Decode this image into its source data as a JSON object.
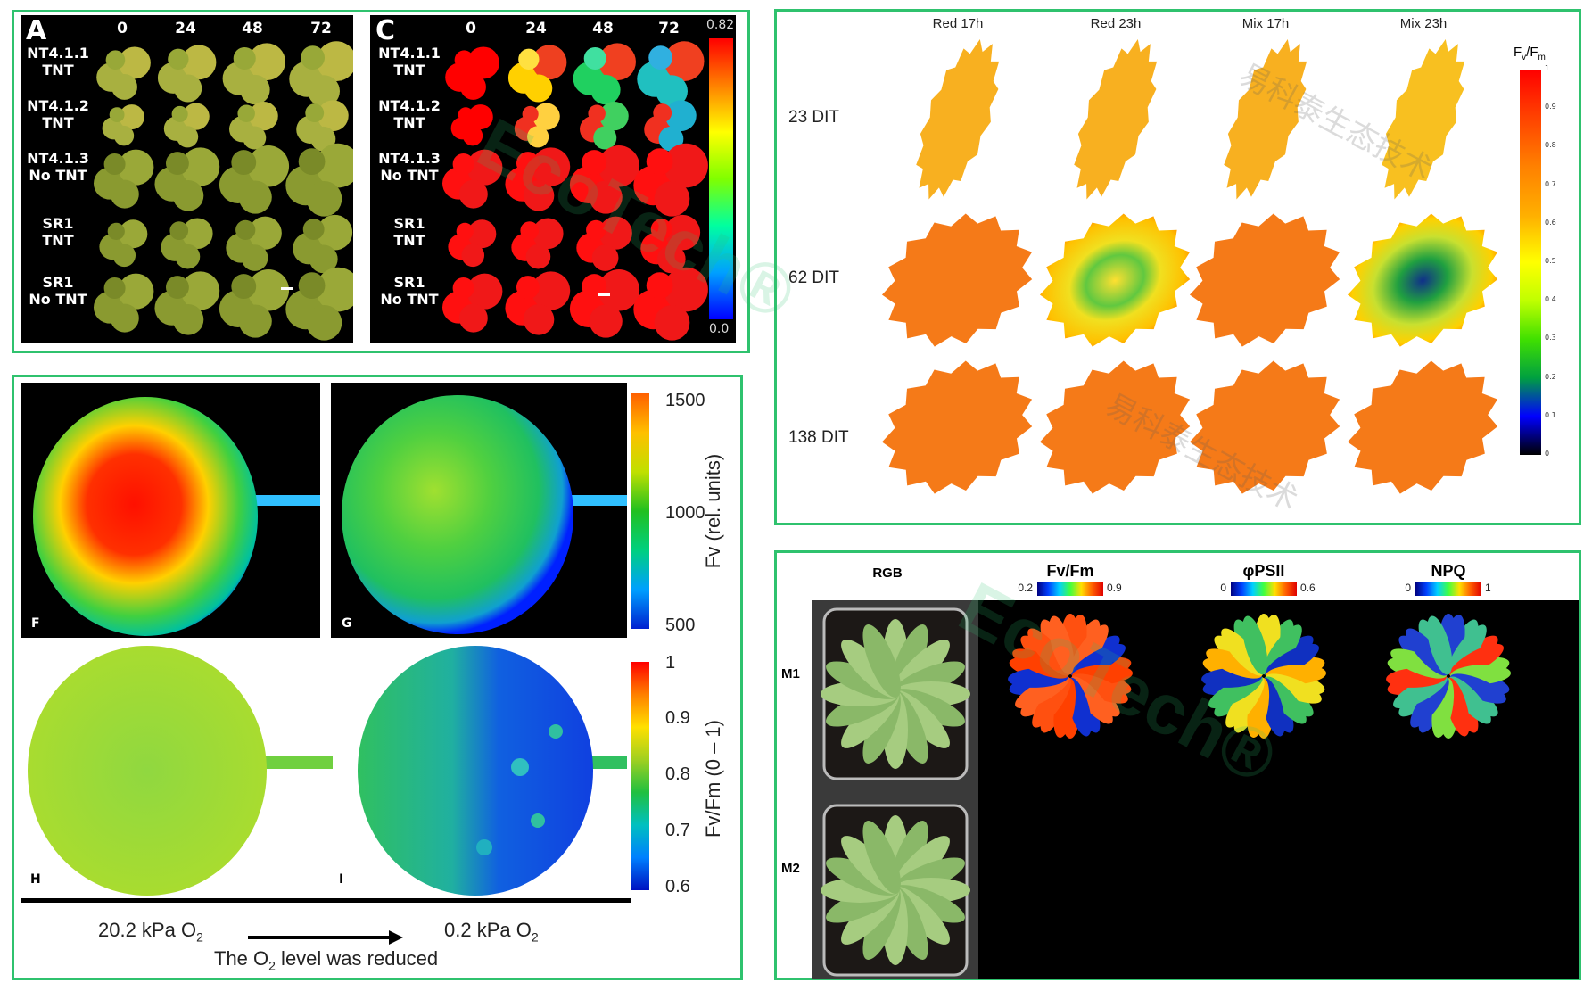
{
  "panel_seedlings": {
    "panel_a": {
      "letter": "A",
      "columns": [
        "0",
        "24",
        "48",
        "72"
      ],
      "rows": [
        [
          "NT4.1.1",
          "TNT"
        ],
        [
          "NT4.1.2",
          "TNT"
        ],
        [
          "NT4.1.3",
          "No TNT"
        ],
        [
          "SR1",
          "TNT"
        ],
        [
          "SR1",
          "No TNT"
        ]
      ]
    },
    "panel_c": {
      "letter": "C",
      "columns": [
        "0",
        "24",
        "48",
        "72"
      ],
      "rows": [
        [
          "NT4.1.1",
          "TNT"
        ],
        [
          "NT4.1.2",
          "TNT"
        ],
        [
          "NT4.1.3",
          "No TNT"
        ],
        [
          "SR1",
          "TNT"
        ],
        [
          "SR1",
          "No TNT"
        ]
      ],
      "colorbar": {
        "max": "0.82",
        "min": "0.0"
      }
    }
  },
  "panel_apple": {
    "labels": {
      "f": "F",
      "g": "G",
      "h": "H",
      "i": "I"
    },
    "fv_colorbar": {
      "ticks": [
        "1500",
        "1000",
        "500"
      ],
      "title": "Fv (rel. units)"
    },
    "fvfm_colorbar": {
      "ticks": [
        "1",
        "0.9",
        "0.8",
        "0.7",
        "0.6"
      ],
      "title": "Fv/Fm (0 – 1)"
    },
    "left_condition": "20.2 kPa O",
    "right_condition": "0.2 kPa O",
    "subscript": "2",
    "caption_pre": "The O",
    "caption_post": " level was reduced"
  },
  "panel_tomato": {
    "columns": [
      "Red 17h",
      "Red 23h",
      "Mix 17h",
      "Mix 23h"
    ],
    "rows": [
      "23 DIT",
      "62 DIT",
      "138 DIT"
    ],
    "colorbar": {
      "title_main": "F",
      "title_sub1": "v",
      "title_mid": "/F",
      "title_sub2": "m",
      "ticks": [
        "1",
        "0.9",
        "0.8",
        "0.7",
        "0.6",
        "0.5",
        "0.4",
        "0.3",
        "0.2",
        "0.1",
        "0"
      ]
    }
  },
  "panel_plants": {
    "columns": [
      "RGB",
      "Fv/Fm",
      "φPSII",
      "NPQ"
    ],
    "rows": [
      "M1",
      "M2"
    ],
    "scales": [
      {
        "min": "0.2",
        "max": "0.9"
      },
      {
        "min": "0",
        "max": "0.6"
      },
      {
        "min": "0",
        "max": "1"
      }
    ]
  },
  "watermark": {
    "logo": "EcoTech®",
    "cn": "易科泰生态技术"
  },
  "colors": {
    "frame": "#2fc26e",
    "jet": [
      "#00007f",
      "#0000ff",
      "#00bfff",
      "#00ff80",
      "#ffff00",
      "#ff8000",
      "#ff0000"
    ]
  }
}
